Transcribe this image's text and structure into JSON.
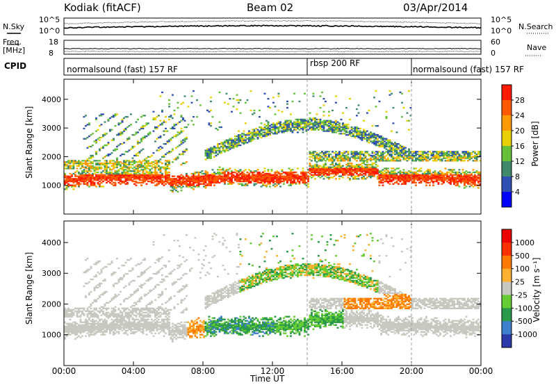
{
  "header": {
    "station": "Kodiak (fitACF)",
    "beam": "Beam 02",
    "date": "03/Apr/2014"
  },
  "panels": {
    "nsky": {
      "label": "N.Sky",
      "ticks": [
        "10^5",
        "10^0"
      ]
    },
    "nsearch": {
      "label": "N.Search",
      "ticks": [
        "10^5",
        "10^0"
      ]
    },
    "freq": {
      "label_line1": "Freq.",
      "label_line2": "[MHz]",
      "ticks": [
        "18",
        "8"
      ]
    },
    "nave": {
      "label": "Nave",
      "ticks": [
        "60",
        "0"
      ]
    },
    "cpid": {
      "label": "CPID",
      "segments": [
        {
          "name": "normalsound (fast) 157 RF",
          "start": 0,
          "end": 14
        },
        {
          "name": "rbsp 200 RF",
          "start": 14,
          "end": 20
        },
        {
          "name": "normalsound (fast) 157 RF",
          "start": 20,
          "end": 24
        }
      ]
    }
  },
  "chart_data": [
    {
      "type": "heatmap",
      "panel": "power",
      "ylabel": "Slant Range [km]",
      "ylim": [
        0,
        4700
      ],
      "yticks": [
        "1000",
        "2000",
        "3000",
        "4000"
      ],
      "xlim": [
        0,
        24
      ],
      "colorbar_label": "Power [dB]",
      "colorbar_ticks": [
        "28",
        "24",
        "20",
        "16",
        "12",
        "8",
        "4"
      ],
      "colors": [
        "#0000ff",
        "#2f4fb3",
        "#3f8a6a",
        "#66c03a",
        "#e8d000",
        "#ff9a00",
        "#ff5a00",
        "#ff1a00"
      ]
    },
    {
      "type": "heatmap",
      "panel": "velocity",
      "ylabel": "Slant Range [km]",
      "ylim": [
        0,
        4700
      ],
      "yticks": [
        "1000",
        "2000",
        "3000",
        "4000"
      ],
      "xlabel": "Time UT",
      "xticks": [
        "00:00",
        "04:00",
        "08:00",
        "12:00",
        "16:00",
        "20:00",
        "00:00"
      ],
      "xlim": [
        0,
        24
      ],
      "colorbar_label": "Velocity [m s⁻¹]",
      "colorbar_ticks": [
        "1000",
        "500",
        "100",
        "25",
        "-25",
        "-100",
        "-500",
        "-1000"
      ],
      "colors": [
        "#2a3aa8",
        "#3f7fd0",
        "#2a9a4a",
        "#66cc33",
        "#c8c8c0",
        "#ffb030",
        "#ff7a00",
        "#ff3000",
        "#ee0000"
      ]
    }
  ]
}
